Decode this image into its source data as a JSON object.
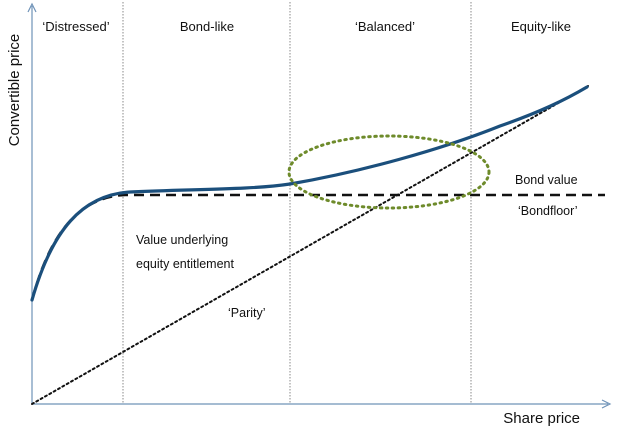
{
  "diagram": {
    "y_axis_title": "Convertible price",
    "x_axis_title": "Share price",
    "regions": [
      {
        "name": "distressed",
        "label": "‘Distressed’"
      },
      {
        "name": "bond-like",
        "label": "Bond-like"
      },
      {
        "name": "balanced",
        "label": "‘Balanced’"
      },
      {
        "name": "equity-like",
        "label": "Equity-like"
      }
    ],
    "labels": {
      "bond_value": "Bond value",
      "bondfloor": "‘Bondfloor’",
      "value_underlying_line1": "Value underlying",
      "value_underlying_line2": "equity entitlement",
      "parity": "‘Parity’"
    },
    "curves": {
      "convertible_price": "solid, dark blue",
      "bond_floor": "dashed, black",
      "parity": "dotted, black",
      "balanced_highlight": "dotted ellipse, olive green"
    },
    "colors": {
      "convertible_curve": "#1b4f7c",
      "bond_floor": "#111111",
      "parity": "#111111",
      "highlight_ellipse": "#6e8b2b",
      "axis": "#6f93b8",
      "region_dividers": "#8a8a8a"
    }
  }
}
